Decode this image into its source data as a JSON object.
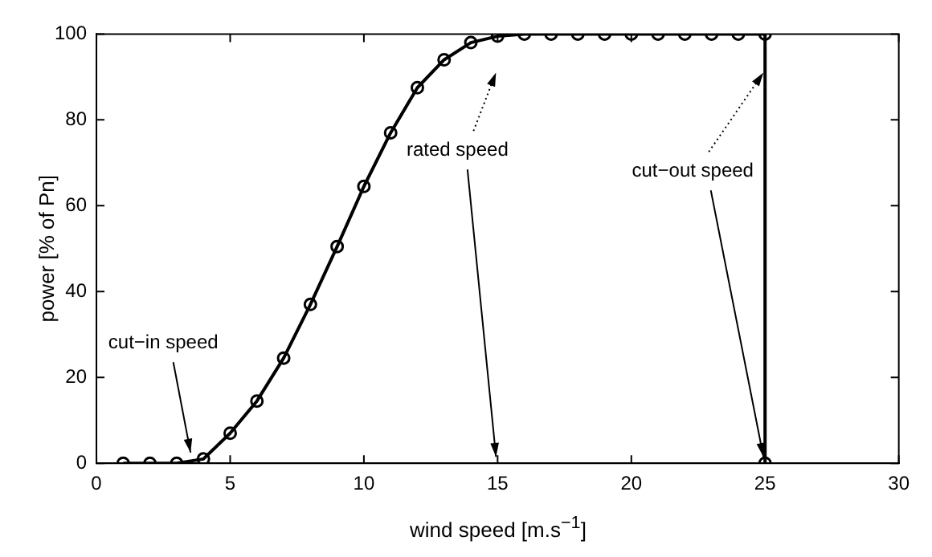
{
  "chart_data": {
    "type": "line",
    "xlabel": "wind speed [m.s$^{−1}$]",
    "ylabel": "power [% of Pn]",
    "x": [
      1,
      2,
      3,
      4,
      5,
      6,
      7,
      8,
      9,
      10,
      11,
      12,
      13,
      14,
      15,
      16,
      17,
      18,
      19,
      20,
      21,
      22,
      23,
      24,
      25,
      25
    ],
    "series": [
      {
        "color": "#000000",
        "values": [
          0,
          0,
          0,
          1,
          7,
          14.5,
          24.5,
          37,
          50.5,
          64.5,
          77,
          87.5,
          94,
          98,
          99.5,
          100,
          100,
          100,
          100,
          100,
          100,
          100,
          100,
          100,
          100,
          0
        ]
      }
    ],
    "xlim": [
      0,
      30
    ],
    "xticks": [
      0,
      5,
      10,
      15,
      20,
      25,
      30
    ],
    "ylim": [
      0,
      100
    ],
    "yticks": [
      0,
      20,
      40,
      60,
      80,
      100
    ],
    "marker": "circle",
    "line_style": "solid",
    "grid": false,
    "legend": false,
    "annotations": [
      {
        "text": "cut−in speed",
        "x": 4,
        "y": 1
      },
      "rated speed",
      {
        "text": "cut−out speed",
        "x": 25,
        "y": 0
      }
    ]
  }
}
